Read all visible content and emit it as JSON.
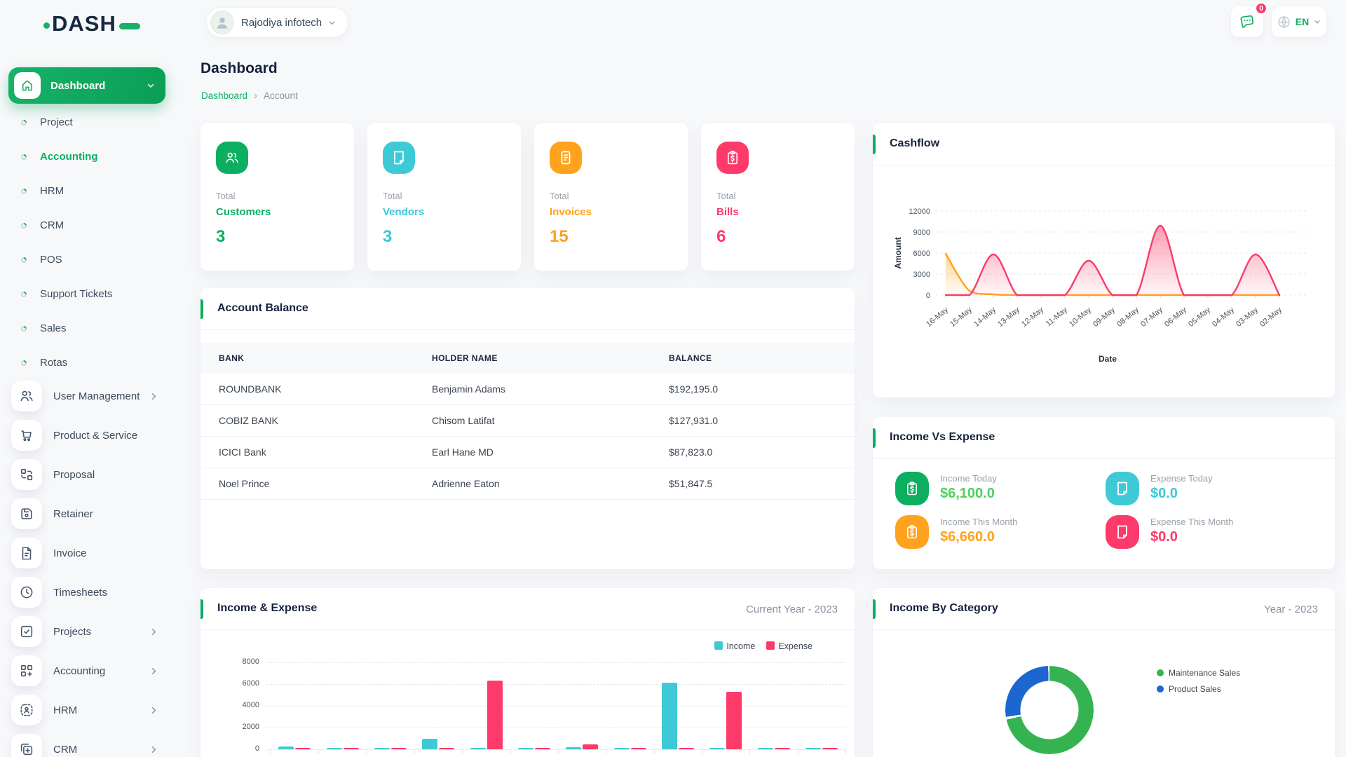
{
  "colors": {
    "green": "#0caf60",
    "cyan": "#3ec9d6",
    "orange": "#ffa21d",
    "pink": "#fd3a69",
    "blue": "#1b66cf",
    "donut_green": "#34b350"
  },
  "brand": {
    "name": "DASH"
  },
  "header": {
    "company": "Rajodiya infotech",
    "notification_badge": "0",
    "language": "EN"
  },
  "page": {
    "title": "Dashboard",
    "breadcrumb_home": "Dashboard",
    "breadcrumb_current": "Account"
  },
  "sidebar": {
    "dashboard": {
      "label": "Dashboard"
    },
    "dashboard_children": [
      {
        "label": "Project",
        "active": false
      },
      {
        "label": "Accounting",
        "active": true
      },
      {
        "label": "HRM",
        "active": false
      },
      {
        "label": "CRM",
        "active": false
      },
      {
        "label": "POS",
        "active": false
      },
      {
        "label": "Support Tickets",
        "active": false
      },
      {
        "label": "Sales",
        "active": false
      },
      {
        "label": "Rotas",
        "active": false
      }
    ],
    "items": [
      {
        "label": "User Management",
        "icon": "users",
        "chevron": true
      },
      {
        "label": "Product & Service",
        "icon": "cart",
        "chevron": false
      },
      {
        "label": "Proposal",
        "icon": "proposal",
        "chevron": false
      },
      {
        "label": "Retainer",
        "icon": "retainer",
        "chevron": false
      },
      {
        "label": "Invoice",
        "icon": "invoice",
        "chevron": false
      },
      {
        "label": "Timesheets",
        "icon": "clock",
        "chevron": false
      },
      {
        "label": "Projects",
        "icon": "check-square",
        "chevron": true
      },
      {
        "label": "Accounting",
        "icon": "grid-plus",
        "chevron": true
      },
      {
        "label": "HRM",
        "icon": "user-frame",
        "chevron": true
      },
      {
        "label": "CRM",
        "icon": "crm-frame",
        "chevron": true
      }
    ]
  },
  "stats": {
    "cards": [
      {
        "top": "Total",
        "name": "Customers",
        "value": "3",
        "color": "#0caf60",
        "icon": "users"
      },
      {
        "top": "Total",
        "name": "Vendors",
        "value": "3",
        "color": "#3ec9d6",
        "icon": "note"
      },
      {
        "top": "Total",
        "name": "Invoices",
        "value": "15",
        "color": "#ffa21d",
        "icon": "receipt"
      },
      {
        "top": "Total",
        "name": "Bills",
        "value": "6",
        "color": "#fd3a69",
        "icon": "clipboard-dollar"
      }
    ]
  },
  "account_balance": {
    "title": "Account Balance",
    "columns": [
      "BANK",
      "HOLDER NAME",
      "BALANCE"
    ],
    "rows": [
      [
        "ROUNDBANK",
        "Benjamin Adams",
        "$192,195.0"
      ],
      [
        "COBIZ BANK",
        "Chisom Latifat",
        "$127,931.0"
      ],
      [
        "ICICI Bank",
        "Earl Hane MD",
        "$87,823.0"
      ],
      [
        "Noel Prince",
        "Adrienne Eaton",
        "$51,847.5"
      ]
    ]
  },
  "income_vs_expense": {
    "title": "Income Vs Expense",
    "items": [
      {
        "label": "Income Today",
        "value": "$6,100.0",
        "icon_bg": "#0caf60",
        "value_color": "#4fd05e",
        "icon": "clipboard-dollar"
      },
      {
        "label": "Expense Today",
        "value": "$0.0",
        "icon_bg": "#3ec9d6",
        "value_color": "#3ec9d6",
        "icon": "note"
      },
      {
        "label": "Income This Month",
        "value": "$6,660.0",
        "icon_bg": "#ffa21d",
        "value_color": "#ffa21d",
        "icon": "clipboard-dollar"
      },
      {
        "label": "Expense This Month",
        "value": "$0.0",
        "icon_bg": "#fd3a69",
        "value_color": "#fd3a69",
        "icon": "note"
      }
    ]
  },
  "chart_data": [
    {
      "id": "cashflow",
      "type": "area",
      "title": "Cashflow",
      "xlabel": "Date",
      "ylabel": "Amount",
      "x": [
        "16-May",
        "15-May",
        "14-May",
        "13-May",
        "12-May",
        "11-May",
        "10-May",
        "09-May",
        "08-May",
        "07-May",
        "06-May",
        "05-May",
        "04-May",
        "03-May",
        "02-May"
      ],
      "yticks": [
        0,
        3000,
        6000,
        9000,
        12000
      ],
      "ylim": [
        0,
        12000
      ],
      "grid": "dashed-horizontal",
      "legend": "none",
      "series": [
        {
          "name": "series-orange",
          "color": "#ffa21d",
          "values": [
            5900,
            600,
            100,
            0,
            0,
            0,
            0,
            0,
            0,
            0,
            0,
            0,
            0,
            0,
            0
          ]
        },
        {
          "name": "series-pink",
          "color": "#fd3a69",
          "values": [
            0,
            0,
            5800,
            0,
            0,
            0,
            4900,
            0,
            0,
            9900,
            0,
            0,
            0,
            5800,
            0
          ]
        }
      ]
    },
    {
      "id": "income_expense",
      "type": "bar",
      "title": "Income & Expense",
      "right_label": "Current Year - 2023",
      "yticks": [
        0,
        2000,
        4000,
        6000,
        8000
      ],
      "ylim": [
        0,
        8000
      ],
      "legend_position": "top-right",
      "x_axis_labels": "cut off below viewport",
      "series": [
        {
          "name": "Income",
          "color": "#3ec9d6",
          "values": [
            250,
            120,
            120,
            950,
            120,
            120,
            200,
            120,
            6100,
            120,
            120,
            120
          ]
        },
        {
          "name": "Expense",
          "color": "#fd3a69",
          "values": [
            120,
            120,
            120,
            120,
            6300,
            120,
            450,
            120,
            120,
            5300,
            120,
            120
          ]
        }
      ]
    },
    {
      "id": "income_by_category",
      "type": "pie",
      "donut": true,
      "title": "Income By Category",
      "right_label": "Year - 2023",
      "labels": [
        "Maintenance Sales",
        "Product Sales"
      ],
      "values": [
        72,
        28
      ],
      "colors": [
        "#34b350",
        "#1b66cf"
      ],
      "legend_position": "right"
    }
  ]
}
